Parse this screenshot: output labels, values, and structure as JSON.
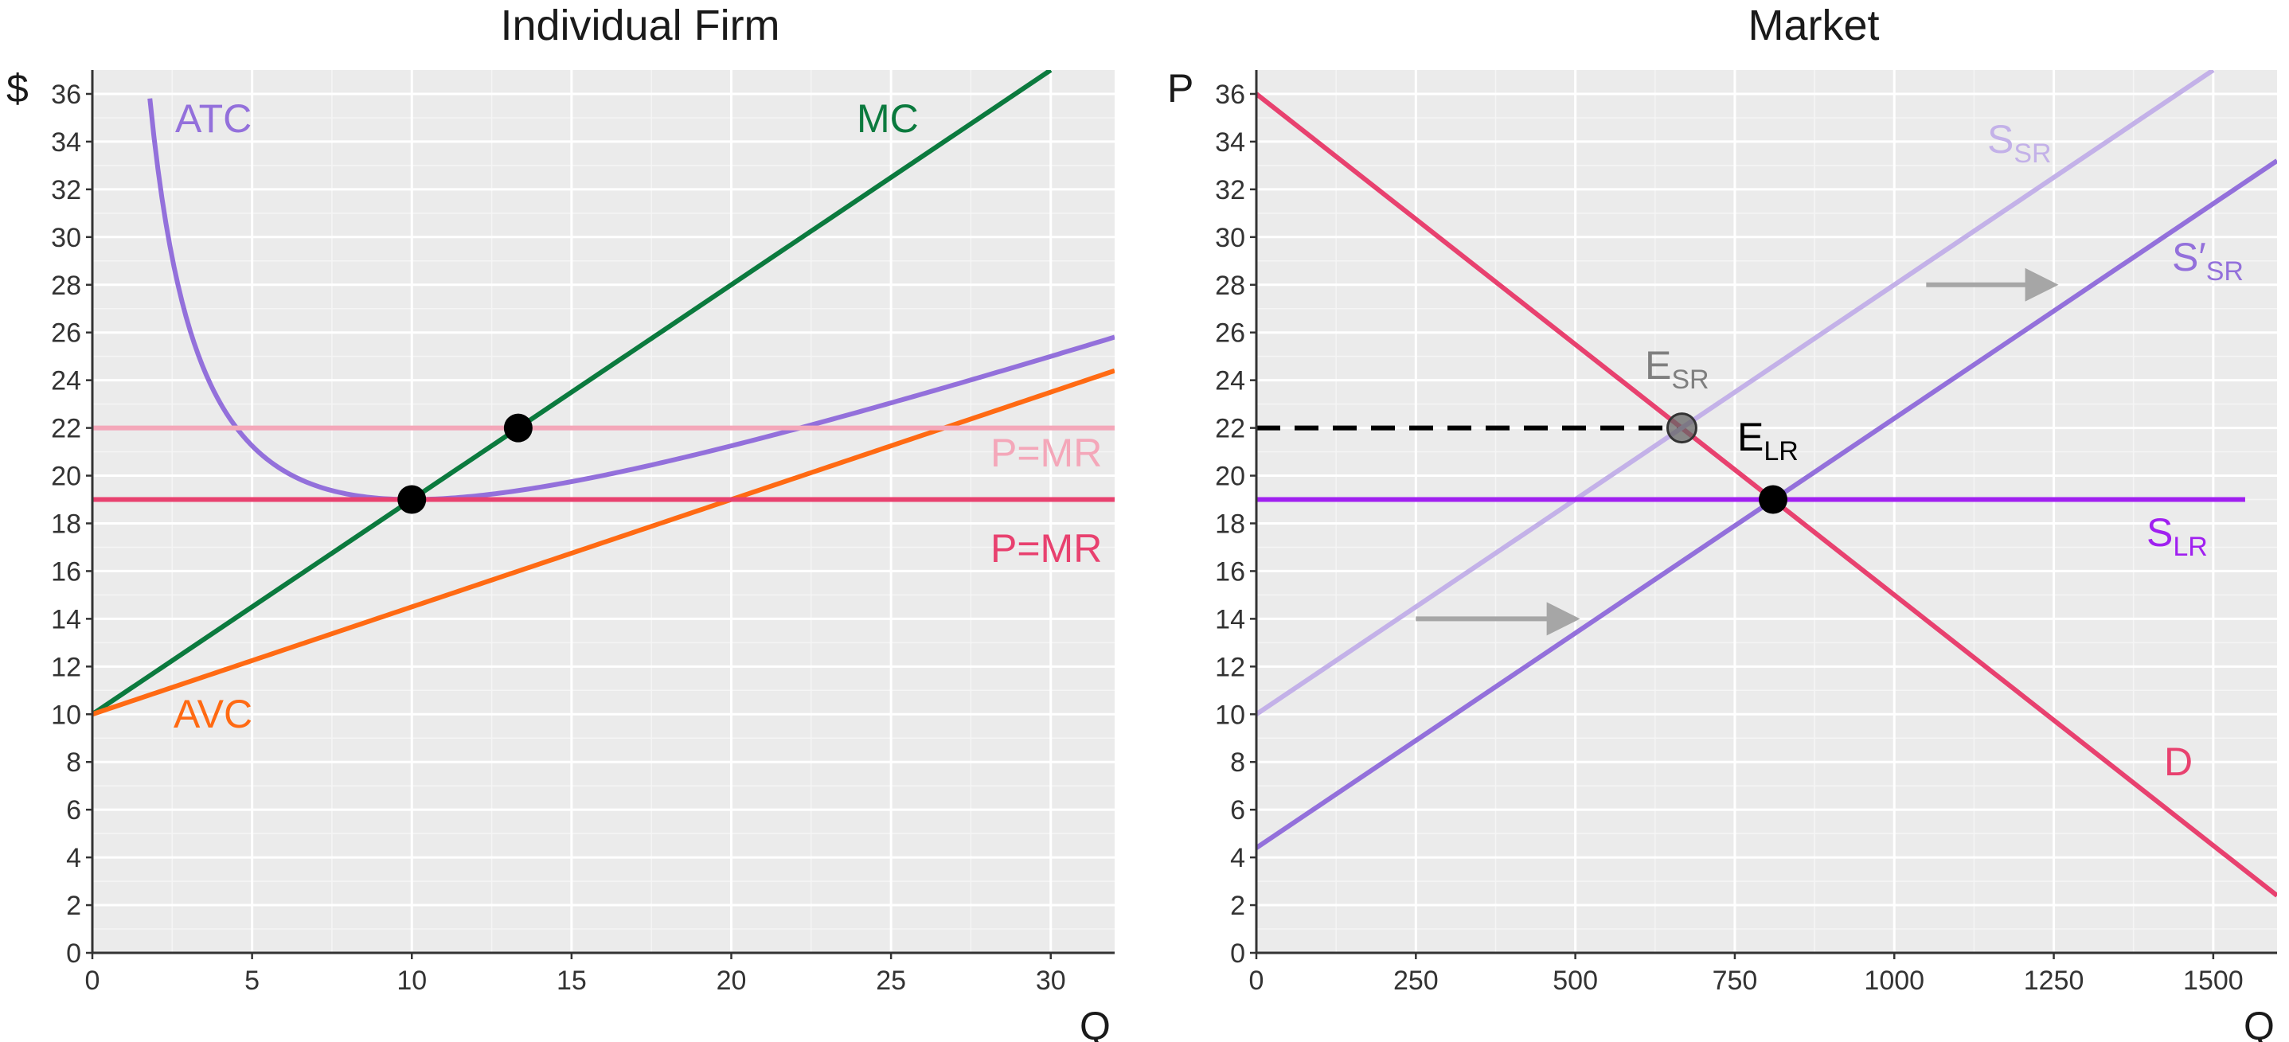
{
  "chart_data": [
    {
      "type": "line",
      "title": "Individual Firm",
      "xlabel": "Q",
      "ylabel": "$",
      "xlim": [
        0,
        32
      ],
      "ylim": [
        0,
        37
      ],
      "x_ticks": [
        0,
        5,
        10,
        15,
        20,
        25,
        30
      ],
      "y_ticks": [
        0,
        2,
        4,
        6,
        8,
        10,
        12,
        14,
        16,
        18,
        20,
        22,
        24,
        26,
        28,
        30,
        32,
        34,
        36
      ],
      "grid": true,
      "series": [
        {
          "name": "ATC",
          "color": "#9370DB",
          "formula": "ATC = 10 + 0.45Q + 45/Q",
          "x_range": [
            1.8,
            32
          ]
        },
        {
          "name": "MC",
          "color": "#0B7A3E",
          "formula": "MC = 10 + 0.9Q",
          "x_range": [
            0,
            30
          ]
        },
        {
          "name": "AVC",
          "color": "#FF6A13",
          "formula": "AVC = 10 + 0.45Q",
          "x_range": [
            0,
            32
          ]
        },
        {
          "name": "P=MR",
          "color": "#F4A7B9",
          "y": 22
        },
        {
          "name": "P=MR",
          "color": "#E8416F",
          "y": 19
        }
      ],
      "points": [
        {
          "x": 10,
          "y": 19,
          "color": "#000000"
        },
        {
          "x": 13.33,
          "y": 22,
          "color": "#000000"
        }
      ]
    },
    {
      "type": "line",
      "title": "Market",
      "xlabel": "Q",
      "ylabel": "P",
      "xlim": [
        0,
        1600
      ],
      "ylim": [
        0,
        37
      ],
      "x_ticks": [
        0,
        250,
        500,
        750,
        1000,
        1250,
        1500
      ],
      "y_ticks": [
        0,
        2,
        4,
        6,
        8,
        10,
        12,
        14,
        16,
        18,
        20,
        22,
        24,
        26,
        28,
        30,
        32,
        34,
        36
      ],
      "grid": true,
      "series": [
        {
          "name": "D",
          "color": "#E8416F",
          "points": [
            [
              0,
              36
            ],
            [
              1600,
              2.4
            ]
          ]
        },
        {
          "name": "S_SR",
          "color": "#C3B1E8",
          "points": [
            [
              0,
              10
            ],
            [
              1500,
              37
            ]
          ]
        },
        {
          "name": "S'_SR",
          "color": "#9370DB",
          "points": [
            [
              0,
              4.4
            ],
            [
              1600,
              33.2
            ]
          ]
        },
        {
          "name": "S_LR",
          "color": "#A020F0",
          "points": [
            [
              0,
              19
            ],
            [
              1550,
              19
            ]
          ]
        }
      ],
      "points": [
        {
          "name": "E_SR",
          "x": 667,
          "y": 22,
          "color": "#666666"
        },
        {
          "name": "E_LR",
          "x": 810,
          "y": 19,
          "color": "#000000"
        }
      ],
      "guide": {
        "style": "dashed",
        "from": [
          0,
          22
        ],
        "to": [
          667,
          22
        ]
      },
      "arrows": [
        {
          "from": [
            250,
            14
          ],
          "to": [
            500,
            14
          ]
        },
        {
          "from": [
            1050,
            28
          ],
          "to": [
            1250,
            28
          ]
        }
      ]
    }
  ],
  "labels": {
    "left_title": "Individual Firm",
    "right_title": "Market",
    "left_ylabel": "$",
    "right_ylabel": "P",
    "xlabel": "Q",
    "atc": "ATC",
    "mc": "MC",
    "avc": "AVC",
    "pmr_high": "P=MR",
    "pmr_low": "P=MR",
    "ssr_main": "S",
    "ssr_sub": "SR",
    "ssr2_main": "S′",
    "ssr2_sub": "SR",
    "slr_main": "S",
    "slr_sub": "LR",
    "d": "D",
    "esr_main": "E",
    "esr_sub": "SR",
    "elr_main": "E",
    "elr_sub": "LR"
  }
}
